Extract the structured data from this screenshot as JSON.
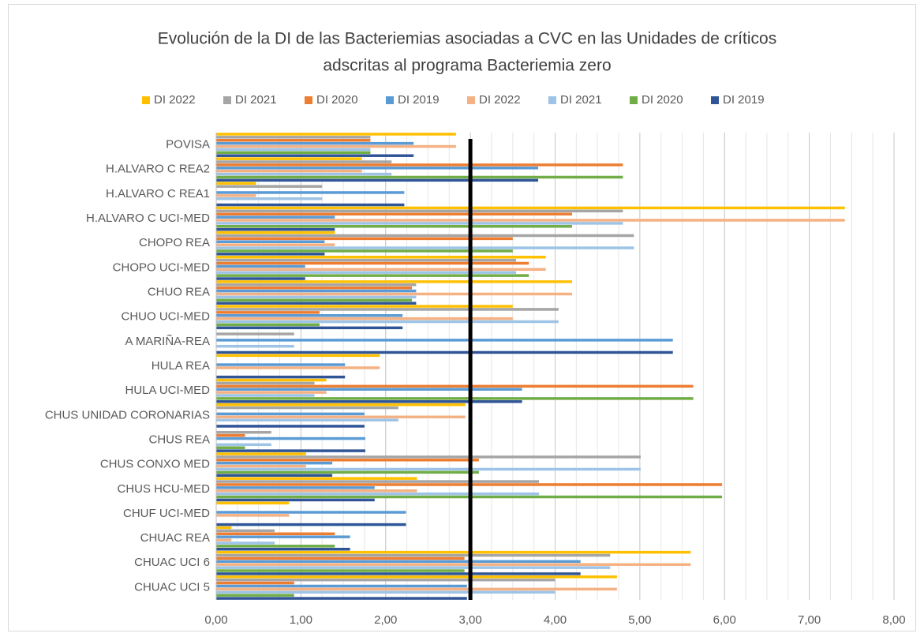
{
  "chart_data": {
    "type": "hbar",
    "title": [
      "Evolución de la DI de las Bacteriemias asociadas a CVC  en las Unidades de críticos",
      "adscritas al programa Bacteriemia zero"
    ],
    "categories": [
      "POVISA",
      "H.ALVARO C REA2",
      "H.ALVARO C REA1",
      "H.ALVARO C UCI-MED",
      "CHOPO REA",
      "CHOPO UCI-MED",
      "CHUO REA",
      "CHUO UCI-MED",
      "A MARIÑA-REA",
      "HULA REA",
      "HULA UCI-MED",
      "CHUS UNIDAD CORONARIAS",
      "CHUS REA",
      "CHUS CONXO MED",
      "CHUS HCU-MED",
      "CHUF UCI-MED",
      "CHUAC REA",
      "CHUAC UCI 6",
      "CHUAC UCI 5"
    ],
    "series": [
      {
        "name": "DI 2022",
        "color": "#ffc000",
        "values": [
          2.83,
          1.72,
          0.47,
          7.42,
          1.4,
          3.89,
          4.2,
          3.5,
          0,
          1.93,
          1.3,
          2.94,
          0,
          1.06,
          2.37,
          0.86,
          0.18,
          5.6,
          4.73
        ]
      },
      {
        "name": "DI 2021",
        "color": "#a5a5a5",
        "values": [
          1.82,
          2.07,
          1.25,
          4.8,
          4.93,
          3.54,
          2.36,
          4.04,
          0.92,
          0,
          1.16,
          2.15,
          0.65,
          5.01,
          3.81,
          0,
          0.69,
          4.65,
          4.0
        ]
      },
      {
        "name": "DI 2020",
        "color": "#ed7d31",
        "values": [
          1.82,
          4.8,
          0,
          4.2,
          3.5,
          3.69,
          2.31,
          1.22,
          0,
          0,
          5.63,
          0,
          0.34,
          3.1,
          5.97,
          0,
          1.4,
          2.93,
          0.92
        ]
      },
      {
        "name": "DI 2019",
        "color": "#5b9bd5",
        "values": [
          2.33,
          3.8,
          2.22,
          1.4,
          1.28,
          1.05,
          2.36,
          2.2,
          5.39,
          1.52,
          3.61,
          1.75,
          1.76,
          1.37,
          1.87,
          2.24,
          1.58,
          4.3,
          2.96
        ]
      },
      {
        "name": "DI 2022",
        "color": "#f4b183",
        "values": [
          2.83,
          1.72,
          0.47,
          7.42,
          1.4,
          3.89,
          4.2,
          3.5,
          0,
          1.93,
          1.3,
          2.94,
          0,
          1.06,
          2.37,
          0.86,
          0.18,
          5.6,
          4.73
        ]
      },
      {
        "name": "DI 2021",
        "color": "#9dc3e6",
        "values": [
          1.82,
          2.07,
          1.25,
          4.8,
          4.93,
          3.54,
          2.36,
          4.04,
          0.92,
          0,
          1.16,
          2.15,
          0.65,
          5.01,
          3.81,
          0,
          0.69,
          4.65,
          4.0
        ]
      },
      {
        "name": "DI 2020",
        "color": "#70ad47",
        "values": [
          1.82,
          4.8,
          0,
          4.2,
          3.5,
          3.69,
          2.31,
          1.22,
          0,
          0,
          5.63,
          0,
          0.34,
          3.1,
          5.97,
          0,
          1.4,
          2.93,
          0.92
        ]
      },
      {
        "name": "DI 2019",
        "color": "#2f5597",
        "values": [
          2.33,
          3.8,
          2.22,
          1.4,
          1.28,
          1.05,
          2.36,
          2.2,
          5.39,
          1.52,
          3.61,
          1.75,
          1.76,
          1.37,
          1.87,
          2.24,
          1.58,
          4.3,
          2.96
        ]
      }
    ],
    "xlim": [
      0,
      8
    ],
    "xticks": [
      {
        "value": 0,
        "label": "0,00"
      },
      {
        "value": 1,
        "label": "1,00"
      },
      {
        "value": 2,
        "label": "2,00"
      },
      {
        "value": 3,
        "label": "3,00"
      },
      {
        "value": 4,
        "label": "4,00"
      },
      {
        "value": 5,
        "label": "5,00"
      },
      {
        "value": 6,
        "label": "6,00"
      },
      {
        "value": 7,
        "label": "7,00"
      },
      {
        "value": 8,
        "label": "8,00"
      }
    ],
    "minor_grid_step": 0.25,
    "reference_line": {
      "value": 3,
      "color": "#000000"
    },
    "grid": true,
    "legend": "top"
  }
}
